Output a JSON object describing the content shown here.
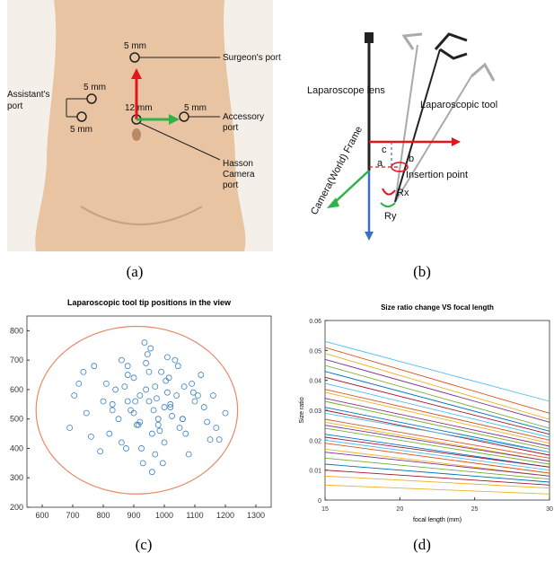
{
  "panel_labels": [
    "(a)",
    "(b)",
    "(c)",
    "(d)"
  ],
  "diagram_a": {
    "top_port_size": "5 mm",
    "surgeon_port": "Surgeon's port",
    "assistant_port": [
      "Assistant's",
      "port"
    ],
    "assistant_upper_size": "5 mm",
    "assistant_lower_size": "5 mm",
    "camera_port_size": "12 mm",
    "accessory_port_size": "5 mm",
    "accessory_port": [
      "Accessory",
      "port"
    ],
    "hasson_port": [
      "Hasson",
      "Camera",
      "port"
    ]
  },
  "diagram_b": {
    "lens": "Laparoscope lens",
    "tool": "Laparoscopic tool",
    "c": "c",
    "b": "b",
    "a": "a",
    "insertion": "Insertion point",
    "frame": "Camera(World) Frame",
    "rx": "Rx",
    "ry": "Ry"
  },
  "chart_data": [
    {
      "type": "scatter",
      "title": "Laparoscopic tool tip positions in the view",
      "color": "#3b7fc4",
      "xlim": [
        550,
        1350
      ],
      "ylim": [
        200,
        850
      ],
      "xticks": [
        600,
        700,
        800,
        900,
        1000,
        1100,
        1200,
        1300
      ],
      "yticks": [
        200,
        300,
        400,
        500,
        600,
        700,
        800
      ],
      "boundary": {
        "color": "#e8876a",
        "center": [
          910,
          530
        ],
        "radius_x": 330,
        "radius_y": 285
      },
      "x": [
        690,
        720,
        745,
        770,
        800,
        820,
        840,
        860,
        875,
        890,
        900,
        910,
        920,
        930,
        940,
        950,
        955,
        960,
        970,
        980,
        990,
        1000,
        1010,
        1020,
        1035,
        1050,
        1065,
        1080,
        1100,
        1120,
        1140,
        1160,
        1180,
        1200,
        705,
        760,
        810,
        850,
        880,
        905,
        925,
        945,
        965,
        985,
        1005,
        1025,
        1045,
        1070,
        1095,
        1130,
        1170,
        735,
        790,
        830,
        870,
        915,
        935,
        975,
        995,
        1015,
        1060,
        1110,
        1150,
        900,
        940,
        980,
        1020,
        860,
        880,
        1000,
        950,
        920,
        1040,
        970,
        1090,
        830,
        960,
        1010,
        880,
        1060
      ],
      "values": [
        470,
        620,
        520,
        680,
        560,
        450,
        600,
        700,
        400,
        530,
        640,
        480,
        580,
        350,
        690,
        560,
        740,
        320,
        610,
        500,
        660,
        420,
        590,
        540,
        700,
        470,
        610,
        380,
        560,
        650,
        490,
        580,
        430,
        520,
        580,
        440,
        620,
        500,
        650,
        560,
        400,
        720,
        530,
        460,
        630,
        510,
        680,
        450,
        590,
        540,
        470,
        660,
        390,
        550,
        610,
        480,
        760,
        570,
        350,
        640,
        500,
        580,
        430,
        520,
        600,
        480,
        550,
        420,
        680,
        540,
        660,
        490,
        580,
        380,
        620,
        530,
        450,
        710,
        560,
        500
      ]
    },
    {
      "type": "line",
      "title": "Size ratio change VS focal length",
      "xlabel": "focal length (mm)",
      "ylabel": "Size ratio",
      "xlim": [
        15,
        30
      ],
      "ylim": [
        0,
        0.06
      ],
      "xticks": [
        15,
        20,
        25,
        30
      ],
      "yticks": [
        0,
        0.01,
        0.02,
        0.03,
        0.04,
        0.05,
        0.06
      ],
      "x": [
        15,
        30
      ],
      "series": [
        {
          "color": "#4dbeee",
          "values": [
            0.053,
            0.033
          ]
        },
        {
          "color": "#d95319",
          "values": [
            0.051,
            0.029
          ]
        },
        {
          "color": "#edb120",
          "values": [
            0.049,
            0.027
          ]
        },
        {
          "color": "#7e2f8e",
          "values": [
            0.047,
            0.026
          ]
        },
        {
          "color": "#77ac30",
          "values": [
            0.045,
            0.024
          ]
        },
        {
          "color": "#0072bd",
          "values": [
            0.043,
            0.023
          ]
        },
        {
          "color": "#a2142f",
          "values": [
            0.041,
            0.022
          ]
        },
        {
          "color": "#4dbeee",
          "values": [
            0.039,
            0.021
          ]
        },
        {
          "color": "#d95319",
          "values": [
            0.037,
            0.02
          ]
        },
        {
          "color": "#edb120",
          "values": [
            0.036,
            0.019
          ]
        },
        {
          "color": "#7e2f8e",
          "values": [
            0.034,
            0.018
          ]
        },
        {
          "color": "#77ac30",
          "values": [
            0.033,
            0.017
          ]
        },
        {
          "color": "#0072bd",
          "values": [
            0.031,
            0.016
          ]
        },
        {
          "color": "#a2142f",
          "values": [
            0.03,
            0.015
          ]
        },
        {
          "color": "#4dbeee",
          "values": [
            0.029,
            0.016
          ]
        },
        {
          "color": "#d95319",
          "values": [
            0.027,
            0.014
          ]
        },
        {
          "color": "#edb120",
          "values": [
            0.026,
            0.013
          ]
        },
        {
          "color": "#7e2f8e",
          "values": [
            0.025,
            0.013
          ]
        },
        {
          "color": "#77ac30",
          "values": [
            0.024,
            0.012
          ]
        },
        {
          "color": "#0072bd",
          "values": [
            0.022,
            0.011
          ]
        },
        {
          "color": "#a2142f",
          "values": [
            0.021,
            0.011
          ]
        },
        {
          "color": "#4dbeee",
          "values": [
            0.02,
            0.01
          ]
        },
        {
          "color": "#d95319",
          "values": [
            0.019,
            0.009
          ]
        },
        {
          "color": "#edb120",
          "values": [
            0.017,
            0.008
          ]
        },
        {
          "color": "#7e2f8e",
          "values": [
            0.016,
            0.008
          ]
        },
        {
          "color": "#77ac30",
          "values": [
            0.014,
            0.007
          ]
        },
        {
          "color": "#0072bd",
          "values": [
            0.012,
            0.006
          ]
        },
        {
          "color": "#a2142f",
          "values": [
            0.01,
            0.005
          ]
        },
        {
          "color": "#edb120",
          "values": [
            0.008,
            0.004
          ]
        },
        {
          "color": "#edb120",
          "values": [
            0.005,
            0.002
          ]
        }
      ]
    }
  ]
}
